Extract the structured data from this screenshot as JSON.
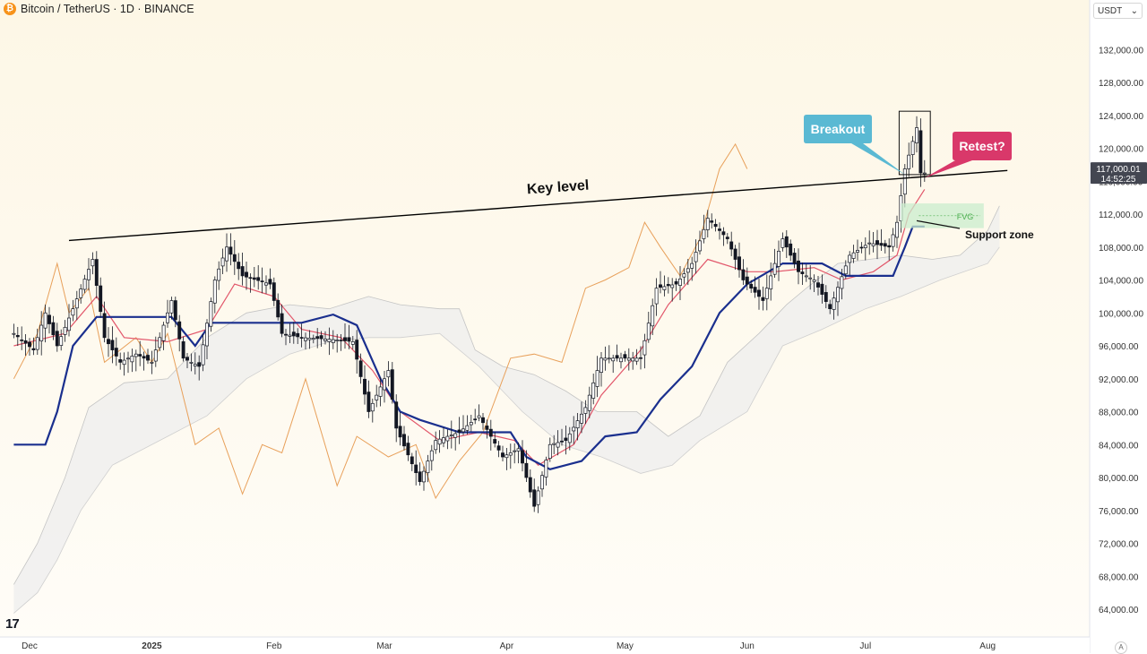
{
  "header": {
    "coin_symbol": "₿",
    "title": "Bitcoin / TetherUS · 1D · BINANCE"
  },
  "currency_select": {
    "value": "USDT",
    "chevron": "chevron-down-icon"
  },
  "price_axis_toggle": "A",
  "logo_text": "17",
  "colors": {
    "candle": "#131722",
    "tenkan": "#e2566a",
    "kijun": "#1a2f8e",
    "chikou": "#e8a05a",
    "cloud": "#eeeeee",
    "breakout": "#5ab9d3",
    "retest": "#d9386a",
    "fvg_fill": "#c9eccd",
    "fvg_text": "#4caf50"
  },
  "chart_data": {
    "type": "candlestick",
    "symbol": "Bitcoin / TetherUS",
    "interval": "1D",
    "exchange": "BINANCE",
    "currency": "USDT",
    "ylim": [
      61000,
      138000
    ],
    "y_ticks": [
      "132,000.00",
      "128,000.00",
      "124,000.00",
      "120,000.00",
      "116,000.00",
      "112,000.00",
      "108,000.00",
      "104,000.00",
      "100,000.00",
      "96,000.00",
      "92,000.00",
      "88,000.00",
      "84,000.00",
      "80,000.00",
      "76,000.00",
      "72,000.00",
      "68,000.00",
      "64,000.00"
    ],
    "y_tick_values": [
      132000,
      128000,
      124000,
      120000,
      116000,
      112000,
      108000,
      104000,
      100000,
      96000,
      92000,
      88000,
      84000,
      80000,
      76000,
      72000,
      68000,
      64000
    ],
    "x_labels": [
      {
        "label": "Dec",
        "date": "2024-12-01",
        "bold": false
      },
      {
        "label": "2025",
        "date": "2025-01-01",
        "bold": true
      },
      {
        "label": "Feb",
        "date": "2025-02-01",
        "bold": false
      },
      {
        "label": "Mar",
        "date": "2025-03-01",
        "bold": false
      },
      {
        "label": "Apr",
        "date": "2025-04-01",
        "bold": false
      },
      {
        "label": "May",
        "date": "2025-05-01",
        "bold": false
      },
      {
        "label": "Jun",
        "date": "2025-06-01",
        "bold": false
      },
      {
        "label": "Jul",
        "date": "2025-07-01",
        "bold": false
      },
      {
        "label": "Aug",
        "date": "2025-08-01",
        "bold": false
      }
    ],
    "current_price": {
      "price": "117,000.01",
      "countdown": "14:52:25",
      "value": 117000
    },
    "price_path": [
      [
        "2024-11-27",
        97500
      ],
      [
        "2024-12-02",
        95500
      ],
      [
        "2024-12-05",
        100000
      ],
      [
        "2024-12-08",
        96000
      ],
      [
        "2024-12-12",
        100500
      ],
      [
        "2024-12-17",
        106500
      ],
      [
        "2024-12-20",
        97000
      ],
      [
        "2024-12-24",
        94000
      ],
      [
        "2024-12-28",
        95000
      ],
      [
        "2025-01-01",
        94000
      ],
      [
        "2025-01-06",
        101500
      ],
      [
        "2025-01-09",
        94500
      ],
      [
        "2025-01-13",
        93500
      ],
      [
        "2025-01-17",
        104000
      ],
      [
        "2025-01-20",
        108000
      ],
      [
        "2025-01-24",
        104500
      ],
      [
        "2025-01-31",
        103500
      ],
      [
        "2025-02-03",
        97500
      ],
      [
        "2025-02-08",
        97000
      ],
      [
        "2025-02-15",
        96800
      ],
      [
        "2025-02-21",
        96500
      ],
      [
        "2025-02-25",
        88000
      ],
      [
        "2025-03-02",
        93000
      ],
      [
        "2025-03-04",
        86000
      ],
      [
        "2025-03-10",
        79500
      ],
      [
        "2025-03-14",
        84500
      ],
      [
        "2025-03-20",
        85500
      ],
      [
        "2025-03-25",
        87500
      ],
      [
        "2025-03-31",
        82500
      ],
      [
        "2025-04-04",
        83500
      ],
      [
        "2025-04-08",
        76500
      ],
      [
        "2025-04-12",
        84000
      ],
      [
        "2025-04-16",
        84500
      ],
      [
        "2025-04-21",
        88500
      ],
      [
        "2025-04-25",
        94500
      ],
      [
        "2025-04-30",
        94500
      ],
      [
        "2025-05-05",
        94500
      ],
      [
        "2025-05-09",
        103000
      ],
      [
        "2025-05-14",
        103500
      ],
      [
        "2025-05-18",
        106000
      ],
      [
        "2025-05-22",
        111500
      ],
      [
        "2025-05-27",
        109000
      ],
      [
        "2025-05-31",
        104000
      ],
      [
        "2025-06-05",
        101500
      ],
      [
        "2025-06-10",
        109000
      ],
      [
        "2025-06-14",
        105000
      ],
      [
        "2025-06-18",
        104000
      ],
      [
        "2025-06-22",
        100500
      ],
      [
        "2025-06-27",
        107000
      ],
      [
        "2025-07-02",
        108500
      ],
      [
        "2025-07-07",
        108000
      ],
      [
        "2025-07-09",
        111000
      ],
      [
        "2025-07-11",
        117500
      ],
      [
        "2025-07-14",
        122500
      ],
      [
        "2025-07-15",
        117000
      ],
      [
        "2025-07-16",
        117000
      ]
    ],
    "tenkan": [
      [
        "2024-11-27",
        96000
      ],
      [
        "2024-12-10",
        97500
      ],
      [
        "2024-12-18",
        102000
      ],
      [
        "2024-12-25",
        97000
      ],
      [
        "2025-01-05",
        96500
      ],
      [
        "2025-01-15",
        98000
      ],
      [
        "2025-01-22",
        103500
      ],
      [
        "2025-02-01",
        102000
      ],
      [
        "2025-02-08",
        98000
      ],
      [
        "2025-02-18",
        97000
      ],
      [
        "2025-02-26",
        93000
      ],
      [
        "2025-03-05",
        88000
      ],
      [
        "2025-03-15",
        84500
      ],
      [
        "2025-03-25",
        85500
      ],
      [
        "2025-04-03",
        84500
      ],
      [
        "2025-04-09",
        81500
      ],
      [
        "2025-04-18",
        84000
      ],
      [
        "2025-04-25",
        90000
      ],
      [
        "2025-05-05",
        95500
      ],
      [
        "2025-05-12",
        101000
      ],
      [
        "2025-05-22",
        106500
      ],
      [
        "2025-06-01",
        105000
      ],
      [
        "2025-06-08",
        105000
      ],
      [
        "2025-06-18",
        105500
      ],
      [
        "2025-06-25",
        104000
      ],
      [
        "2025-07-03",
        105000
      ],
      [
        "2025-07-09",
        107000
      ],
      [
        "2025-07-12",
        112000
      ],
      [
        "2025-07-16",
        115000
      ]
    ],
    "kijun": [
      [
        "2024-11-27",
        84000
      ],
      [
        "2024-12-05",
        84000
      ],
      [
        "2024-12-08",
        88000
      ],
      [
        "2024-12-12",
        96000
      ],
      [
        "2024-12-18",
        99500
      ],
      [
        "2024-12-28",
        99500
      ],
      [
        "2025-01-06",
        99500
      ],
      [
        "2025-01-12",
        96000
      ],
      [
        "2025-01-16",
        98800
      ],
      [
        "2025-01-28",
        98800
      ],
      [
        "2025-02-08",
        98800
      ],
      [
        "2025-02-16",
        99800
      ],
      [
        "2025-02-22",
        98500
      ],
      [
        "2025-02-28",
        92000
      ],
      [
        "2025-03-05",
        88000
      ],
      [
        "2025-03-10",
        87000
      ],
      [
        "2025-03-20",
        85500
      ],
      [
        "2025-04-02",
        85500
      ],
      [
        "2025-04-06",
        82500
      ],
      [
        "2025-04-12",
        81000
      ],
      [
        "2025-04-20",
        82000
      ],
      [
        "2025-04-26",
        85000
      ],
      [
        "2025-05-04",
        85500
      ],
      [
        "2025-05-10",
        89500
      ],
      [
        "2025-05-18",
        93500
      ],
      [
        "2025-05-25",
        100000
      ],
      [
        "2025-06-01",
        103500
      ],
      [
        "2025-06-10",
        106000
      ],
      [
        "2025-06-20",
        106000
      ],
      [
        "2025-06-26",
        104500
      ],
      [
        "2025-07-08",
        104500
      ],
      [
        "2025-07-11",
        108000
      ],
      [
        "2025-07-13",
        110500
      ],
      [
        "2025-07-16",
        110500
      ]
    ],
    "chikou": [
      [
        "2024-11-27",
        92000
      ],
      [
        "2024-12-03",
        97500
      ],
      [
        "2024-12-08",
        106000
      ],
      [
        "2024-12-11",
        100000
      ],
      [
        "2024-12-16",
        103000
      ],
      [
        "2024-12-20",
        94000
      ],
      [
        "2024-12-28",
        97000
      ],
      [
        "2025-01-01",
        94000
      ],
      [
        "2025-01-05",
        97500
      ],
      [
        "2025-01-12",
        84000
      ],
      [
        "2025-01-18",
        86000
      ],
      [
        "2025-01-24",
        78000
      ],
      [
        "2025-01-29",
        84000
      ],
      [
        "2025-02-03",
        83000
      ],
      [
        "2025-02-09",
        92000
      ],
      [
        "2025-02-17",
        79000
      ],
      [
        "2025-02-22",
        85000
      ],
      [
        "2025-03-02",
        82500
      ],
      [
        "2025-03-09",
        84000
      ],
      [
        "2025-03-14",
        77500
      ],
      [
        "2025-03-20",
        82000
      ],
      [
        "2025-03-26",
        85500
      ],
      [
        "2025-04-02",
        94500
      ],
      [
        "2025-04-08",
        95000
      ],
      [
        "2025-04-15",
        94000
      ],
      [
        "2025-04-21",
        103000
      ],
      [
        "2025-04-26",
        104000
      ],
      [
        "2025-05-02",
        105500
      ],
      [
        "2025-05-06",
        111000
      ],
      [
        "2025-05-10",
        108000
      ],
      [
        "2025-05-15",
        104500
      ],
      [
        "2025-05-20",
        109000
      ],
      [
        "2025-05-25",
        117500
      ],
      [
        "2025-05-29",
        120500
      ],
      [
        "2025-06-01",
        117500
      ]
    ],
    "cloud_top": [
      [
        "2024-11-27",
        67000
      ],
      [
        "2024-12-03",
        72000
      ],
      [
        "2024-12-10",
        80000
      ],
      [
        "2024-12-16",
        88500
      ],
      [
        "2024-12-25",
        91500
      ],
      [
        "2025-01-05",
        92000
      ],
      [
        "2025-01-15",
        97000
      ],
      [
        "2025-01-25",
        100000
      ],
      [
        "2025-02-05",
        101000
      ],
      [
        "2025-02-15",
        100500
      ],
      [
        "2025-02-25",
        102000
      ],
      [
        "2025-03-05",
        101000
      ],
      [
        "2025-03-15",
        100500
      ],
      [
        "2025-03-20",
        100500
      ],
      [
        "2025-03-24",
        95500
      ],
      [
        "2025-03-31",
        93500
      ],
      [
        "2025-04-08",
        92500
      ],
      [
        "2025-04-16",
        90500
      ],
      [
        "2025-04-24",
        88000
      ],
      [
        "2025-05-04",
        88000
      ],
      [
        "2025-05-12",
        85000
      ],
      [
        "2025-05-20",
        87500
      ],
      [
        "2025-05-27",
        94000
      ],
      [
        "2025-06-04",
        97500
      ],
      [
        "2025-06-11",
        101000
      ],
      [
        "2025-06-16",
        103000
      ],
      [
        "2025-06-24",
        106000
      ],
      [
        "2025-07-02",
        106500
      ],
      [
        "2025-07-10",
        107000
      ],
      [
        "2025-07-18",
        106500
      ],
      [
        "2025-07-25",
        107000
      ],
      [
        "2025-08-01",
        110000
      ],
      [
        "2025-08-04",
        113000
      ]
    ],
    "cloud_bottom": [
      [
        "2024-11-27",
        63500
      ],
      [
        "2024-12-03",
        66000
      ],
      [
        "2024-12-08",
        70000
      ],
      [
        "2024-12-14",
        76000
      ],
      [
        "2024-12-22",
        81500
      ],
      [
        "2025-01-05",
        85000
      ],
      [
        "2025-01-15",
        87500
      ],
      [
        "2025-01-25",
        92000
      ],
      [
        "2025-02-05",
        95000
      ],
      [
        "2025-02-15",
        96500
      ],
      [
        "2025-02-25",
        97000
      ],
      [
        "2025-03-05",
        97000
      ],
      [
        "2025-03-15",
        97500
      ],
      [
        "2025-03-25",
        93500
      ],
      [
        "2025-04-05",
        88000
      ],
      [
        "2025-04-15",
        84000
      ],
      [
        "2025-04-25",
        82500
      ],
      [
        "2025-05-05",
        80500
      ],
      [
        "2025-05-13",
        81500
      ],
      [
        "2025-05-20",
        84500
      ],
      [
        "2025-06-01",
        88000
      ],
      [
        "2025-06-10",
        96000
      ],
      [
        "2025-06-20",
        98000
      ],
      [
        "2025-07-01",
        100500
      ],
      [
        "2025-07-10",
        102000
      ],
      [
        "2025-07-20",
        104000
      ],
      [
        "2025-08-01",
        106000
      ],
      [
        "2025-08-04",
        108000
      ]
    ]
  },
  "annotations": {
    "key_level": {
      "label": "Key level",
      "start": [
        "2024-12-11",
        108800
      ],
      "end": [
        "2025-08-06",
        117300
      ]
    },
    "breakout": {
      "label": "Breakout",
      "arrow_to": [
        "2025-07-11",
        116800
      ]
    },
    "retest": {
      "label": "Retest?",
      "arrow_to": [
        "2025-07-16",
        116400
      ]
    },
    "fvg": {
      "label": "FVG",
      "from": "2025-07-10",
      "to": "2025-07-31",
      "top": 113300,
      "bottom": 110300
    },
    "support_zone": {
      "label": "Support zone",
      "arrow_from": [
        "2025-07-14",
        111200
      ]
    },
    "highlight_box": {
      "from": "2025-07-10",
      "to": "2025-07-17",
      "top": 124500,
      "bottom": 116800
    }
  }
}
